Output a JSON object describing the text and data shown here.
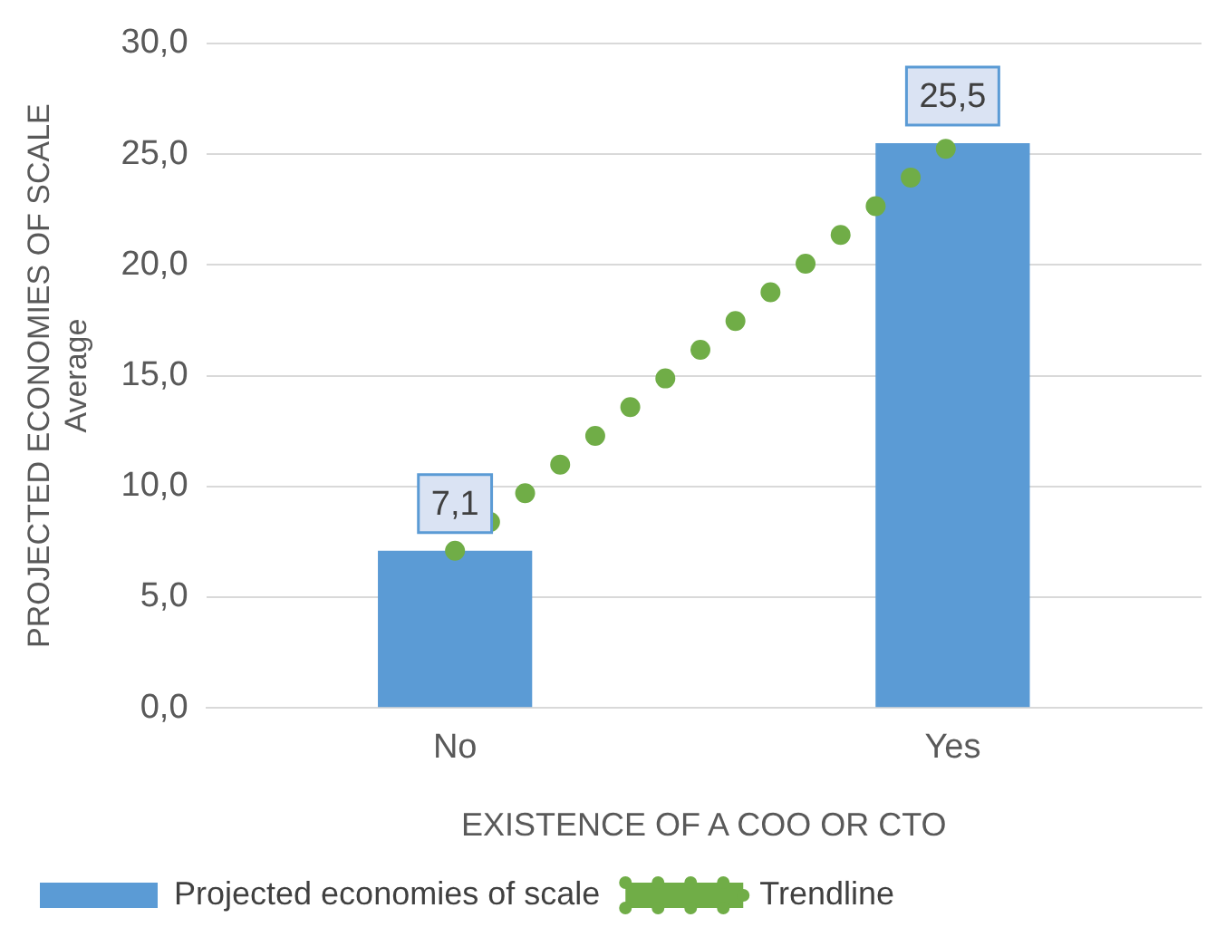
{
  "chart_data": {
    "type": "bar",
    "xlabel": "EXISTENCE OF A COO OR CTO",
    "ylabel": "PROJECTED ECONOMIES OF SCALE\nAverage",
    "categories": [
      "No",
      "Yes"
    ],
    "series": [
      {
        "name": "Projected economies of scale",
        "color": "#5b9bd5",
        "values": [
          7.1,
          25.5
        ],
        "value_labels": [
          "7,1",
          "25,5"
        ]
      },
      {
        "name": "Trendline",
        "type": "line",
        "color": "#70ad47",
        "values": [
          7.1,
          25.5
        ],
        "line_style": "dotted"
      }
    ],
    "ylim": [
      0,
      30
    ],
    "yticks": [
      {
        "value": 0,
        "label": "0,0"
      },
      {
        "value": 5,
        "label": "5,0"
      },
      {
        "value": 10,
        "label": "10,0"
      },
      {
        "value": 15,
        "label": "15,0"
      },
      {
        "value": 20,
        "label": "20,0"
      },
      {
        "value": 25,
        "label": "25,0"
      },
      {
        "value": 30,
        "label": "30,0"
      }
    ],
    "grid": "y",
    "legend": "bottom"
  }
}
